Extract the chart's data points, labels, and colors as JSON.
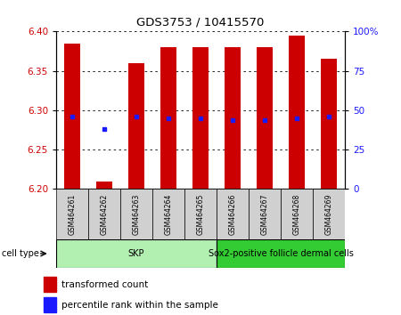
{
  "title": "GDS3753 / 10415570",
  "samples": [
    "GSM464261",
    "GSM464262",
    "GSM464263",
    "GSM464264",
    "GSM464265",
    "GSM464266",
    "GSM464267",
    "GSM464268",
    "GSM464269"
  ],
  "transformed_count_bottom": [
    6.2,
    6.2,
    6.2,
    6.2,
    6.2,
    6.2,
    6.2,
    6.2,
    6.2
  ],
  "transformed_count_top": [
    6.385,
    6.21,
    6.36,
    6.38,
    6.38,
    6.38,
    6.38,
    6.395,
    6.365
  ],
  "percentile_rank": [
    46,
    38,
    46,
    45,
    45,
    44,
    44,
    45,
    46
  ],
  "ylim_left": [
    6.2,
    6.4
  ],
  "ylim_right": [
    0,
    100
  ],
  "yticks_left": [
    6.2,
    6.25,
    6.3,
    6.35,
    6.4
  ],
  "yticks_right": [
    0,
    25,
    50,
    75,
    100
  ],
  "ytick_labels_right": [
    "0",
    "25",
    "50",
    "75",
    "100%"
  ],
  "bar_color": "#cc0000",
  "dot_color": "#1a1aff",
  "cell_groups": [
    {
      "label": "SKP",
      "samples": [
        0,
        1,
        2,
        3,
        4
      ],
      "color": "#b2f0b2"
    },
    {
      "label": "Sox2-positive follicle dermal cells",
      "samples": [
        5,
        6,
        7,
        8
      ],
      "color": "#33cc33"
    }
  ],
  "legend_items": [
    {
      "label": "transformed count",
      "color": "#cc0000"
    },
    {
      "label": "percentile rank within the sample",
      "color": "#1a1aff"
    }
  ],
  "axis_left_color": "#cc0000",
  "axis_right_color": "#1a1aff",
  "cell_type_label": "cell type",
  "bar_width": 0.5,
  "fig_bg": "#ffffff",
  "plot_bg": "#ffffff"
}
